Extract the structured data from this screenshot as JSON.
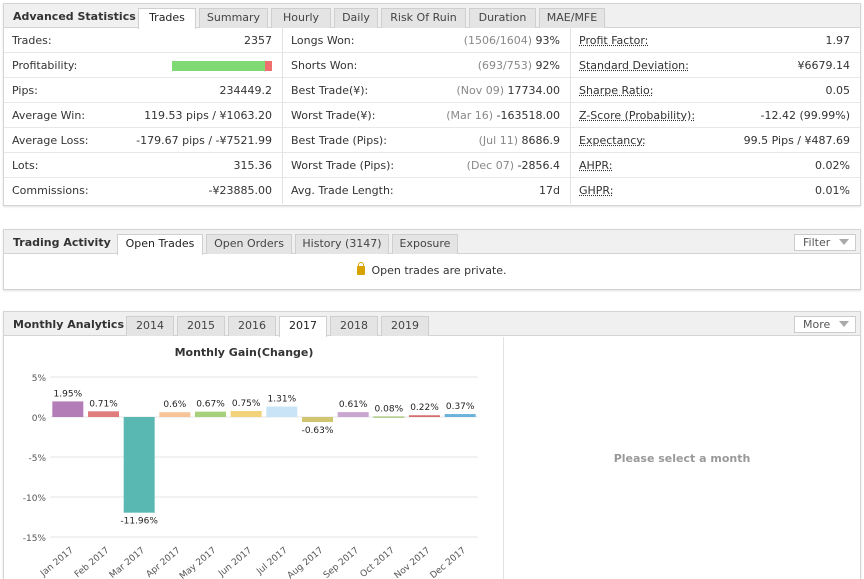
{
  "advanced_statistics": {
    "title": "Advanced Statistics",
    "tabs": [
      "Trades",
      "Summary",
      "Hourly",
      "Daily",
      "Risk Of Ruin",
      "Duration",
      "MAE/MFE"
    ],
    "active_tab": "Trades",
    "col1": [
      {
        "label": "Trades:",
        "value": "2357"
      },
      {
        "label": "Profitability:",
        "progress_fraction": 0.93
      },
      {
        "label": "Pips:",
        "value": "234449.2"
      },
      {
        "label": "Average Win:",
        "value": "119.53 pips / ¥1063.20"
      },
      {
        "label": "Average Loss:",
        "value": "-179.67 pips / -¥7521.99"
      },
      {
        "label": "Lots:",
        "value": "315.36"
      },
      {
        "label": "Commissions:",
        "value": "-¥23885.00"
      }
    ],
    "col2": [
      {
        "label": "Longs Won:",
        "muted": "(1506/1604)",
        "value": "93%"
      },
      {
        "label": "Shorts Won:",
        "muted": "(693/753)",
        "value": "92%"
      },
      {
        "label": "Best Trade(¥):",
        "muted": "(Nov 09)",
        "value": "17734.00"
      },
      {
        "label": "Worst Trade(¥):",
        "muted": "(Mar 16)",
        "value": "-163518.00"
      },
      {
        "label": "Best Trade (Pips):",
        "muted": "(Jul 11)",
        "value": "8686.9"
      },
      {
        "label": "Worst Trade (Pips):",
        "muted": "(Dec 07)",
        "value": "-2856.4"
      },
      {
        "label": "Avg. Trade Length:",
        "muted": "",
        "value": "17d"
      }
    ],
    "col3": [
      {
        "label": "Profit Factor:",
        "value": "1.97"
      },
      {
        "label": "Standard Deviation:",
        "value": "¥6679.14"
      },
      {
        "label": "Sharpe Ratio:",
        "value": "0.05"
      },
      {
        "label": "Z-Score (Probability):",
        "value": "-12.42 (99.99%)"
      },
      {
        "label": "Expectancy:",
        "value": "99.5 Pips / ¥487.69"
      },
      {
        "label": "AHPR:",
        "value": "0.02%"
      },
      {
        "label": "GHPR:",
        "value": "0.01%"
      }
    ]
  },
  "trading_activity": {
    "title": "Trading Activity",
    "tabs": [
      "Open Trades",
      "Open Orders",
      "History (3147)",
      "Exposure"
    ],
    "active_tab": "Open Trades",
    "filter_label": "Filter",
    "message": "Open trades are private.",
    "icon": "lock-icon"
  },
  "monthly_analytics": {
    "title": "Monthly Analytics",
    "tabs": [
      "2014",
      "2015",
      "2016",
      "2017",
      "2018",
      "2019"
    ],
    "active_tab": "2017",
    "more_label": "More",
    "placeholder": "Please select a month"
  },
  "chart_data": {
    "type": "bar",
    "title": "Monthly Gain(Change)",
    "categories": [
      "Jan 2017",
      "Feb 2017",
      "Mar 2017",
      "Apr 2017",
      "May 2017",
      "Jun 2017",
      "Jul 2017",
      "Aug 2017",
      "Sep 2017",
      "Oct 2017",
      "Nov 2017",
      "Dec 2017"
    ],
    "values": [
      1.95,
      0.71,
      -11.96,
      0.6,
      0.67,
      0.75,
      1.31,
      -0.63,
      0.61,
      0.08,
      0.22,
      0.37
    ],
    "data_labels": [
      "1.95%",
      "0.71%",
      "-11.96%",
      "0.6%",
      "0.67%",
      "0.75%",
      "1.31%",
      "-0.63%",
      "0.61%",
      "0.08%",
      "0.22%",
      "0.37%"
    ],
    "colors": [
      "#b37db8",
      "#e07c7c",
      "#5ab8b3",
      "#f7c497",
      "#a7d07b",
      "#f2d27a",
      "#c9e3f7",
      "#cfc66f",
      "#c8a6cf",
      "#a9c880",
      "#d96d6d",
      "#6cb3dc"
    ],
    "yticks": [
      "5%",
      "0%",
      "-5%",
      "-10%",
      "-15%"
    ],
    "ytick_values": [
      5,
      0,
      -5,
      -10,
      -15
    ],
    "ylim": [
      -15,
      5
    ],
    "grid": true
  }
}
